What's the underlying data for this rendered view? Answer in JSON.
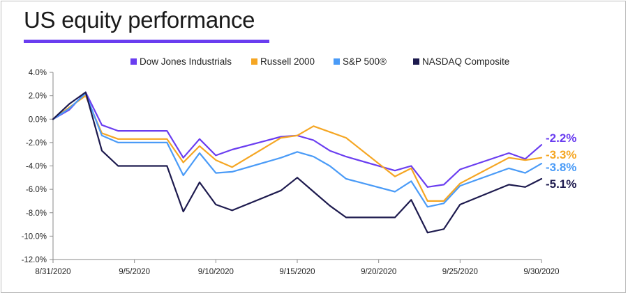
{
  "title": "US equity performance",
  "colors": {
    "accent": "#6a3df0"
  },
  "chart_data": {
    "type": "line",
    "title": "US equity performance",
    "xlabel": "",
    "ylabel": "",
    "ylim": [
      -12.0,
      4.0
    ],
    "y_ticks": [
      4.0,
      2.0,
      0.0,
      -2.0,
      -4.0,
      -6.0,
      -8.0,
      -10.0,
      -12.0
    ],
    "y_tick_labels": [
      "4.0%",
      "2.0%",
      "0.0%",
      "-2.0%",
      "-4.0%",
      "-6.0%",
      "-8.0%",
      "-10.0%",
      "-12.0%"
    ],
    "x_tick_labels": [
      "8/31/2020",
      "9/5/2020",
      "9/10/2020",
      "9/15/2020",
      "9/20/2020",
      "9/25/2020",
      "9/30/2020"
    ],
    "x_tick_days": [
      0,
      5,
      10,
      15,
      20,
      25,
      30
    ],
    "legend_position": "top",
    "grid": false,
    "series": [
      {
        "name": "Dow Jones Industrials",
        "color": "#6a3df0",
        "end_label": "-2.2%",
        "x": [
          0,
          1,
          2,
          3,
          4,
          7,
          8,
          9,
          10,
          11,
          14,
          15,
          16,
          17,
          18,
          21,
          22,
          23,
          24,
          25,
          28,
          29,
          30
        ],
        "y": [
          0.0,
          0.8,
          2.3,
          -0.5,
          -1.0,
          -1.0,
          -3.3,
          -1.7,
          -3.1,
          -2.6,
          -1.5,
          -1.4,
          -1.8,
          -2.7,
          -3.2,
          -4.4,
          -4.0,
          -5.8,
          -5.6,
          -4.3,
          -2.9,
          -3.4,
          -2.2
        ]
      },
      {
        "name": "Russell 2000",
        "color": "#f5a623",
        "end_label": "-3.3%",
        "x": [
          0,
          1,
          2,
          3,
          4,
          7,
          8,
          9,
          10,
          11,
          14,
          15,
          16,
          17,
          18,
          21,
          22,
          23,
          24,
          25,
          28,
          29,
          30
        ],
        "y": [
          0.0,
          1.0,
          2.0,
          -1.2,
          -1.7,
          -1.7,
          -3.7,
          -2.3,
          -3.5,
          -4.1,
          -1.6,
          -1.4,
          -0.6,
          -1.1,
          -1.6,
          -4.9,
          -4.2,
          -7.0,
          -7.0,
          -5.5,
          -3.3,
          -3.5,
          -3.3
        ]
      },
      {
        "name": "S&P 500®",
        "color": "#4a9bf7",
        "end_label": "-3.8%",
        "x": [
          0,
          1,
          2,
          3,
          4,
          7,
          8,
          9,
          10,
          11,
          14,
          15,
          16,
          17,
          18,
          21,
          22,
          23,
          24,
          25,
          28,
          29,
          30
        ],
        "y": [
          0.0,
          0.9,
          2.2,
          -1.4,
          -2.0,
          -2.0,
          -4.8,
          -2.9,
          -4.6,
          -4.5,
          -3.3,
          -2.8,
          -3.2,
          -4.0,
          -5.1,
          -6.2,
          -5.3,
          -7.5,
          -7.2,
          -5.7,
          -4.2,
          -4.6,
          -3.8
        ]
      },
      {
        "name": "NASDAQ Composite",
        "color": "#1d1a4e",
        "end_label": "-5.1%",
        "x": [
          0,
          1,
          2,
          3,
          4,
          7,
          8,
          9,
          10,
          11,
          14,
          15,
          16,
          17,
          18,
          21,
          22,
          23,
          24,
          25,
          28,
          29,
          30
        ],
        "y": [
          0.0,
          1.3,
          2.3,
          -2.7,
          -4.0,
          -4.0,
          -7.9,
          -5.4,
          -7.3,
          -7.8,
          -6.1,
          -5.0,
          -6.2,
          -7.4,
          -8.4,
          -8.4,
          -6.9,
          -9.7,
          -9.4,
          -7.3,
          -5.6,
          -5.8,
          -5.1
        ]
      }
    ]
  }
}
